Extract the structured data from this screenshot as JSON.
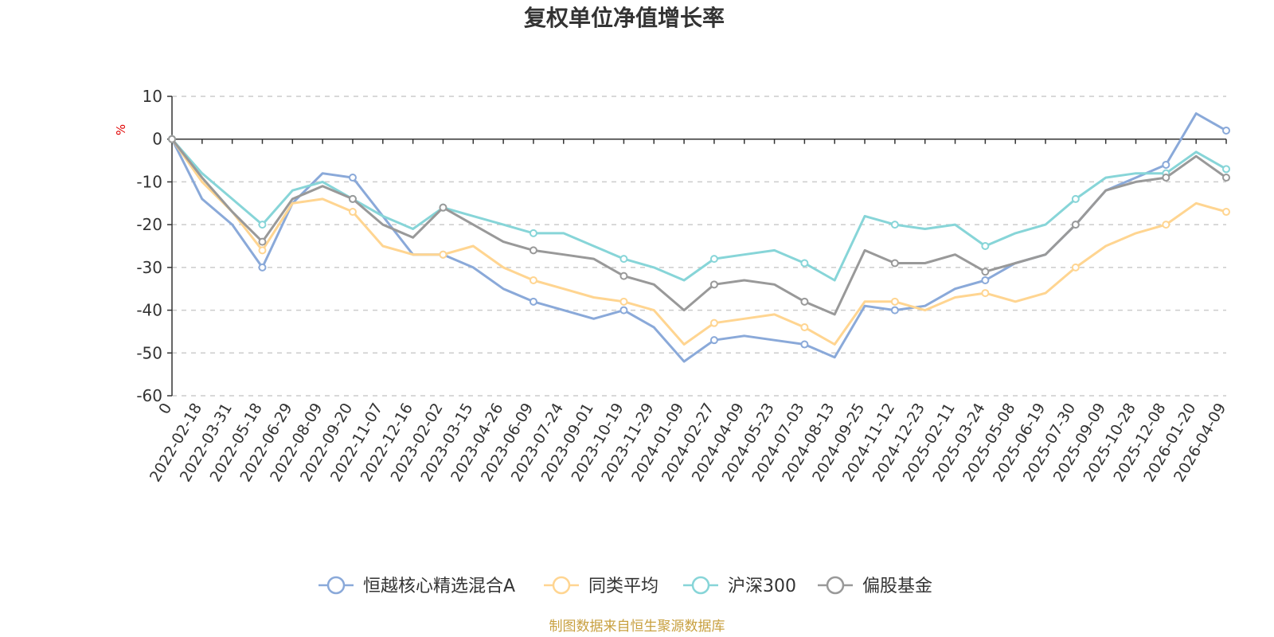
{
  "chart_data": {
    "type": "line",
    "title": "复权单位净值增长率",
    "ylabel": "%",
    "ylim": [
      -60,
      10
    ],
    "yticks": [
      10,
      0,
      -10,
      -20,
      -30,
      -40,
      -50,
      -60
    ],
    "x_origin_label": "0",
    "x_tick_labels": [
      "2022-02-18",
      "2022-03-31",
      "2022-05-18",
      "2022-06-29",
      "2022-08-09",
      "2022-09-20",
      "2022-11-07",
      "2022-12-16",
      "2023-02-02",
      "2023-03-15",
      "2023-04-26",
      "2023-06-09",
      "2023-07-24",
      "2023-09-01",
      "2023-10-19",
      "2023-11-29",
      "2024-01-09",
      "2024-02-27",
      "2024-04-09",
      "2024-05-23",
      "2024-07-03",
      "2024-08-13",
      "2024-09-25",
      "2024-11-12",
      "2024-12-23",
      "2025-02-11",
      "2025-03-24",
      "2025-05-08",
      "2025-06-19",
      "2025-07-30",
      "2025-09-09",
      "2025-10-28",
      "2025-12-08",
      "2026-01-20",
      "2026-04-09"
    ],
    "x_points": [
      "0",
      "2022-02-18",
      "2022-03-31",
      "2022-05-18",
      "2022-06-29",
      "2022-08-09",
      "2022-09-20",
      "2022-11-07",
      "2022-12-16",
      "2023-02-02",
      "2023-03-15",
      "2023-04-26",
      "2023-06-09",
      "2023-07-24",
      "2023-09-01",
      "2023-10-19",
      "2023-11-29",
      "2024-01-09",
      "2024-02-27",
      "2024-04-09",
      "2024-05-23",
      "2024-07-03",
      "2024-08-13",
      "2024-09-25",
      "2024-11-12",
      "2024-12-23",
      "2025-02-11",
      "2025-03-24",
      "2025-05-08",
      "2025-06-19",
      "2025-07-30",
      "2025-09-09",
      "2025-10-28",
      "2025-12-08",
      "2026-01-20",
      "2026-04-09"
    ],
    "series": [
      {
        "name": "恒越核心精选混合A",
        "color": "#8aa9d9",
        "values": [
          0,
          -14,
          -20,
          -30,
          -15,
          -8,
          -9,
          -18,
          -27,
          -27,
          -30,
          -35,
          -38,
          -40,
          -42,
          -40,
          -44,
          -52,
          -47,
          -46,
          -47,
          -48,
          -51,
          -39,
          -40,
          -39,
          -35,
          -33,
          -29,
          -27,
          -20,
          -12,
          -9,
          -6,
          6,
          2
        ]
      },
      {
        "name": "同类平均",
        "color": "#ffd591",
        "values": [
          0,
          -10,
          -17,
          -26,
          -15,
          -14,
          -17,
          -25,
          -27,
          -27,
          -25,
          -30,
          -33,
          -35,
          -37,
          -38,
          -40,
          -48,
          -43,
          -42,
          -41,
          -44,
          -48,
          -38,
          -38,
          -40,
          -37,
          -36,
          -38,
          -36,
          -30,
          -25,
          -22,
          -20,
          -15,
          -17
        ]
      },
      {
        "name": "沪深300",
        "color": "#87d5d8",
        "values": [
          0,
          -8,
          -14,
          -20,
          -12,
          -10,
          -14,
          -18,
          -21,
          -16,
          -18,
          -20,
          -22,
          -22,
          -25,
          -28,
          -30,
          -33,
          -28,
          -27,
          -26,
          -29,
          -33,
          -18,
          -20,
          -21,
          -20,
          -25,
          -22,
          -20,
          -14,
          -9,
          -8,
          -8,
          -3,
          -7
        ]
      },
      {
        "name": "偏股基金",
        "color": "#999999",
        "values": [
          0,
          -9,
          -17,
          -24,
          -14,
          -11,
          -14,
          -20,
          -23,
          -16,
          -20,
          -24,
          -26,
          -27,
          -28,
          -32,
          -34,
          -40,
          -34,
          -33,
          -34,
          -38,
          -41,
          -26,
          -29,
          -29,
          -27,
          -31,
          -29,
          -27,
          -20,
          -12,
          -10,
          -9,
          -4,
          -9
        ]
      }
    ]
  },
  "footer": "制图数据来自恒生聚源数据库"
}
